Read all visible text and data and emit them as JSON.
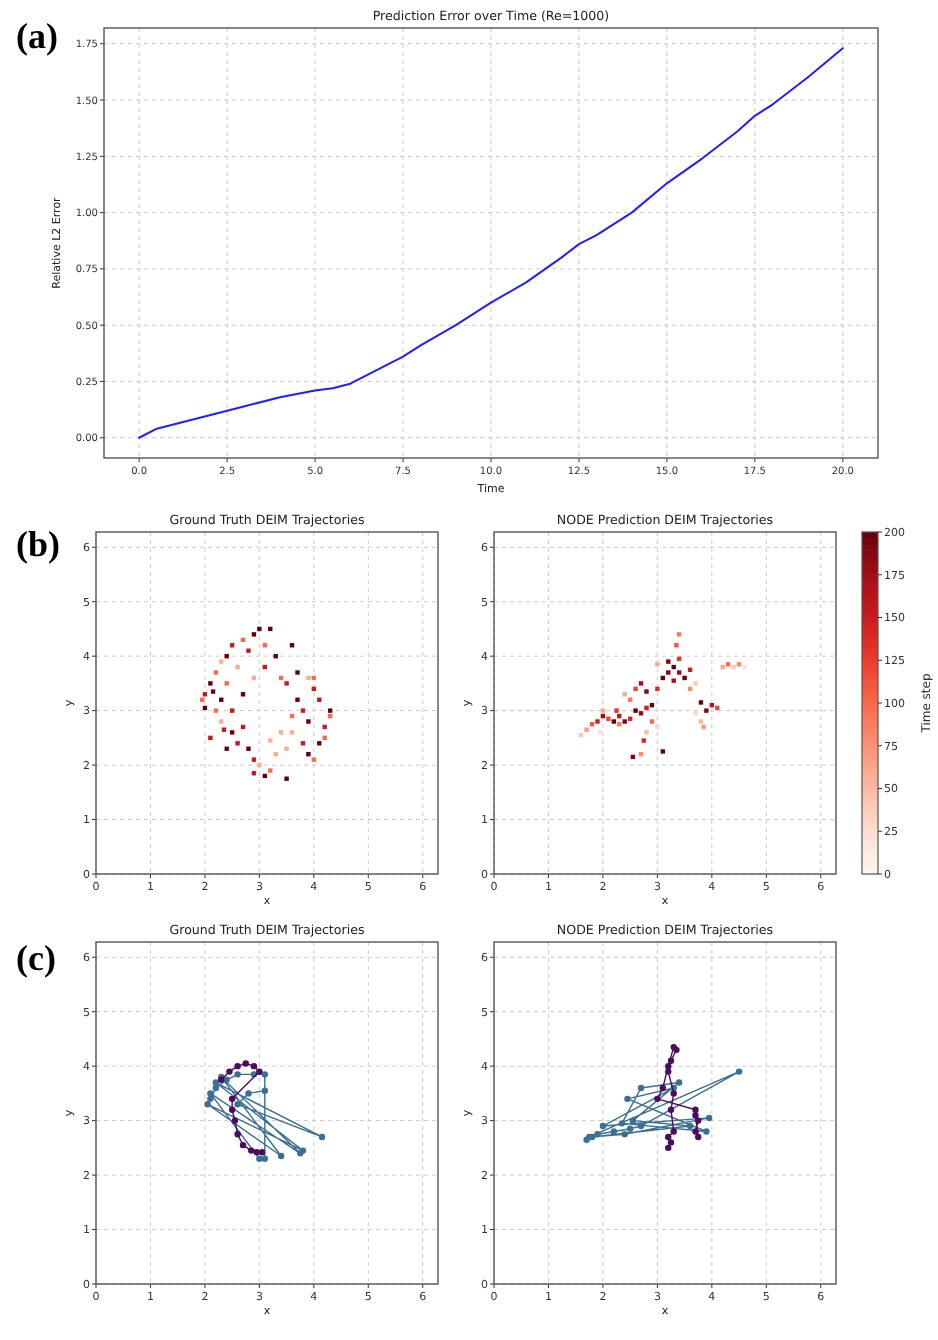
{
  "chart_data": [
    {
      "type": "line",
      "title": "Prediction Error over Time (Re=1000)",
      "xlabel": "Time",
      "ylabel": "Relative L2 Error",
      "annotations": [
        "(a)"
      ],
      "xlim": [
        -1,
        21
      ],
      "xticks": [
        {
          "value": 0,
          "label": "0.0"
        },
        {
          "value": 2.5,
          "label": "2.5"
        },
        {
          "value": 5,
          "label": "5.0"
        },
        {
          "value": 7.5,
          "label": "7.5"
        },
        {
          "value": 10,
          "label": "10.0"
        },
        {
          "value": 12.5,
          "label": "12.5"
        },
        {
          "value": 15,
          "label": "15.0"
        },
        {
          "value": 17.5,
          "label": "17.5"
        },
        {
          "value": 20,
          "label": "20.0"
        }
      ],
      "ylim": [
        -0.09,
        1.82
      ],
      "yticks": [
        {
          "value": 0,
          "label": "0.00"
        },
        {
          "value": 0.25,
          "label": "0.25"
        },
        {
          "value": 0.5,
          "label": "0.50"
        },
        {
          "value": 0.75,
          "label": "0.75"
        },
        {
          "value": 1,
          "label": "1.00"
        },
        {
          "value": 1.25,
          "label": "1.25"
        },
        {
          "value": 1.5,
          "label": "1.50"
        },
        {
          "value": 1.75,
          "label": "1.75"
        }
      ],
      "grid": true,
      "series": [
        {
          "color": "#1f1fff",
          "x": [
            0,
            0.5,
            1,
            2,
            2.5,
            3,
            4,
            5,
            5.5,
            6,
            6.5,
            7,
            7.5,
            8,
            9,
            10,
            11,
            12,
            12.5,
            13,
            14,
            15,
            16,
            17,
            17.5,
            18,
            19,
            20
          ],
          "values": [
            0,
            0.04,
            0.06,
            0.1,
            0.12,
            0.14,
            0.18,
            0.21,
            0.22,
            0.24,
            0.28,
            0.32,
            0.36,
            0.41,
            0.5,
            0.6,
            0.69,
            0.8,
            0.86,
            0.9,
            1.0,
            1.13,
            1.24,
            1.36,
            1.43,
            1.48,
            1.6,
            1.73
          ]
        }
      ]
    },
    {
      "type": "scatter",
      "title": "Ground Truth DEIM Trajectories",
      "xlabel": "x",
      "ylabel": "y",
      "annotations": [
        "(b)"
      ],
      "xlim": [
        0,
        6.28
      ],
      "ylim": [
        0,
        6.28
      ],
      "xticks": [
        0,
        1,
        2,
        3,
        4,
        5,
        6
      ],
      "yticks": [
        0,
        1,
        2,
        3,
        4,
        5,
        6
      ],
      "grid": true,
      "marker": "square",
      "x": [
        2.0,
        1.95,
        2.1,
        2.2,
        2.3,
        2.4,
        2.5,
        2.7,
        2.9,
        3.0,
        3.2,
        2.8,
        2.6,
        2.4,
        2.3,
        2.2,
        2.3,
        2.5,
        2.6,
        2.8,
        2.9,
        3.0,
        3.1,
        2.9,
        3.2,
        3.5,
        3.3,
        3.5,
        2.7,
        2.5,
        2.7,
        2.9,
        3.1,
        3.3,
        3.1,
        3.6,
        3.4,
        2.4,
        2.1,
        3.6,
        3.8,
        3.9,
        4.0,
        4.1,
        4.2,
        4.3,
        4.3,
        4.1,
        4.0,
        3.9,
        3.7,
        4.0,
        3.8,
        3.9,
        3.6,
        3.7,
        3.5,
        3.4,
        4.2,
        3.2,
        2.0,
        2.15,
        2.35
      ],
      "values": [
        3.3,
        3.2,
        3.5,
        3.7,
        3.9,
        4.0,
        4.2,
        4.3,
        4.4,
        4.5,
        4.5,
        4.1,
        3.8,
        3.5,
        3.2,
        3.0,
        2.8,
        2.6,
        2.4,
        2.3,
        2.1,
        2.0,
        1.8,
        1.85,
        1.9,
        1.75,
        2.2,
        2.3,
        2.7,
        3.0,
        3.3,
        3.6,
        3.8,
        4.0,
        4.2,
        4.2,
        3.6,
        2.3,
        2.5,
        2.6,
        2.4,
        2.2,
        2.1,
        2.4,
        2.7,
        2.9,
        3.0,
        3.2,
        3.4,
        3.6,
        3.7,
        3.6,
        3.0,
        2.8,
        2.9,
        3.2,
        3.5,
        2.6,
        2.5,
        2.45,
        3.05,
        3.35,
        2.65
      ],
      "colors": [
        "#cb181d",
        "#fb6a4a",
        "#67000d",
        "#fb6a4a",
        "#fcae91",
        "#67000d",
        "#cb181d",
        "#fb6a4a",
        "#67000d",
        "#67000d",
        "#67000d",
        "#cb181d",
        "#fcae91",
        "#fb6a4a",
        "#67000d",
        "#fb6a4a",
        "#fcae91",
        "#67000d",
        "#cb181d",
        "#67000d",
        "#cb181d",
        "#fcae91",
        "#67000d",
        "#cb181d",
        "#fb6a4a",
        "#67000d",
        "#fcae91",
        "#fcae91",
        "#cb181d",
        "#cb181d",
        "#67000d",
        "#fcae91",
        "#cb181d",
        "#67000d",
        "#fb6a4a",
        "#67000d",
        "#fb6a4a",
        "#67000d",
        "#cb181d",
        "#fcae91",
        "#cb181d",
        "#67000d",
        "#fb6a4a",
        "#67000d",
        "#cb181d",
        "#fb6a4a",
        "#67000d",
        "#cb181d",
        "#cb181d",
        "#fcae91",
        "#67000d",
        "#fb6a4a",
        "#cb181d",
        "#67000d",
        "#fb6a4a",
        "#67000d",
        "#cb181d",
        "#fcae91",
        "#fb6a4a",
        "#fcae91",
        "#67000d",
        "#67000d",
        "#cb181d"
      ]
    },
    {
      "type": "scatter",
      "title": "NODE Prediction DEIM Trajectories",
      "xlabel": "x",
      "ylabel": "y",
      "clabel": "Time step",
      "xlim": [
        0,
        6.28
      ],
      "ylim": [
        0,
        6.28
      ],
      "xticks": [
        0,
        1,
        2,
        3,
        4,
        5,
        6
      ],
      "yticks": [
        0,
        1,
        2,
        3,
        4,
        5,
        6
      ],
      "grid": true,
      "marker": "square",
      "clim": [
        0,
        200
      ],
      "cticks": [
        0,
        25,
        50,
        75,
        100,
        125,
        150,
        175,
        200
      ],
      "x": [
        1.6,
        1.7,
        1.8,
        1.9,
        2.0,
        2.1,
        2.2,
        2.3,
        2.4,
        2.5,
        2.6,
        2.7,
        2.8,
        2.9,
        2.5,
        2.4,
        2.6,
        2.7,
        2.8,
        3.0,
        3.1,
        3.2,
        3.3,
        3.4,
        3.5,
        3.3,
        3.6,
        3.4,
        3.2,
        3.35,
        3.4,
        3.0,
        3.7,
        3.6,
        3.8,
        3.9,
        4.0,
        3.8,
        4.1,
        3.7,
        3.85,
        4.2,
        4.3,
        4.4,
        4.5,
        4.6,
        2.8,
        2.9,
        3.0,
        2.75,
        3.1,
        2.55,
        2.7,
        2.0,
        1.95,
        2.3,
        2.25
      ],
      "values": [
        2.55,
        2.65,
        2.75,
        2.8,
        2.9,
        2.85,
        2.8,
        2.9,
        2.8,
        2.85,
        3.0,
        2.95,
        3.05,
        3.1,
        3.2,
        3.3,
        3.4,
        3.5,
        3.35,
        3.4,
        3.6,
        3.7,
        3.8,
        3.7,
        3.6,
        3.55,
        3.75,
        3.95,
        3.9,
        4.2,
        4.4,
        3.85,
        3.5,
        3.4,
        2.8,
        3.0,
        3.1,
        3.15,
        3.05,
        2.95,
        2.7,
        3.8,
        3.85,
        3.8,
        3.85,
        3.8,
        2.6,
        2.8,
        2.7,
        2.45,
        2.25,
        2.15,
        2.2,
        3.0,
        2.6,
        2.75,
        3.0
      ],
      "cvalues": [
        40,
        70,
        110,
        150,
        180,
        120,
        200,
        160,
        190,
        140,
        200,
        180,
        150,
        200,
        90,
        60,
        120,
        170,
        190,
        140,
        200,
        190,
        200,
        180,
        200,
        170,
        150,
        130,
        190,
        110,
        90,
        60,
        40,
        80,
        50,
        190,
        160,
        200,
        120,
        30,
        70,
        60,
        100,
        40,
        80,
        20,
        50,
        100,
        30,
        140,
        200,
        190,
        80,
        60,
        20,
        90,
        130
      ]
    },
    {
      "type": "line",
      "title": "Ground Truth DEIM Trajectories",
      "xlabel": "x",
      "ylabel": "y",
      "annotations": [
        "(c)"
      ],
      "xlim": [
        0,
        6.28
      ],
      "ylim": [
        0,
        6.28
      ],
      "xticks": [
        0,
        1,
        2,
        3,
        4,
        5,
        6
      ],
      "yticks": [
        0,
        1,
        2,
        3,
        4,
        5,
        6
      ],
      "grid": true,
      "marker": "circle",
      "series": [
        {
          "color": "#3b6f94",
          "x": [
            2.1,
            2.2,
            2.4,
            2.6,
            2.9,
            3.1,
            3.1,
            3.1,
            2.8,
            2.6,
            4.15,
            2.2,
            3.8,
            2.05,
            3.4,
            2.3,
            3.75,
            2.1,
            3.0
          ],
          "values": [
            3.4,
            3.6,
            3.75,
            3.85,
            3.85,
            3.85,
            2.3,
            3.55,
            3.5,
            3.3,
            2.7,
            3.7,
            2.45,
            3.3,
            2.35,
            3.8,
            2.4,
            3.5,
            2.3
          ]
        },
        {
          "color": "#4a0c5e",
          "x": [
            2.3,
            2.45,
            2.6,
            2.75,
            2.9,
            3.0,
            2.5,
            2.5,
            2.55,
            2.6,
            2.7,
            2.85,
            2.95,
            3.05
          ],
          "values": [
            3.75,
            3.9,
            4.0,
            4.05,
            4.0,
            3.9,
            3.4,
            3.2,
            3.0,
            2.75,
            2.55,
            2.45,
            2.42,
            2.42
          ]
        }
      ]
    },
    {
      "type": "line",
      "title": "NODE Prediction DEIM Trajectories",
      "xlabel": "x",
      "ylabel": "y",
      "xlim": [
        0,
        6.28
      ],
      "ylim": [
        0,
        6.28
      ],
      "xticks": [
        0,
        1,
        2,
        3,
        4,
        5,
        6
      ],
      "yticks": [
        0,
        1,
        2,
        3,
        4,
        5,
        6
      ],
      "grid": true,
      "marker": "circle",
      "series": [
        {
          "color": "#3b6f94",
          "x": [
            1.7,
            1.9,
            2.2,
            2.5,
            2.7,
            4.5,
            1.75,
            2.4,
            3.95,
            2.0,
            3.3,
            2.45,
            3.9,
            2.35,
            2.7,
            3.4,
            2.55,
            3.6,
            1.8
          ],
          "values": [
            2.65,
            2.75,
            2.8,
            2.85,
            2.9,
            3.9,
            2.7,
            2.75,
            3.05,
            2.9,
            3.6,
            3.4,
            2.8,
            2.95,
            3.6,
            3.7,
            3.0,
            2.9,
            2.7
          ]
        },
        {
          "color": "#4a0c5e",
          "x": [
            3.2,
            3.25,
            3.2,
            3.3,
            3.25,
            3.3,
            3.2,
            3.25,
            3.35,
            3.3,
            3.2,
            3.1,
            3.0,
            3.7,
            3.75,
            3.7,
            3.75,
            3.7
          ],
          "values": [
            2.5,
            2.6,
            2.7,
            2.8,
            3.2,
            3.5,
            3.9,
            4.1,
            4.3,
            4.35,
            4.0,
            3.6,
            3.4,
            3.2,
            3.0,
            2.8,
            2.7,
            3.1
          ]
        }
      ]
    }
  ]
}
